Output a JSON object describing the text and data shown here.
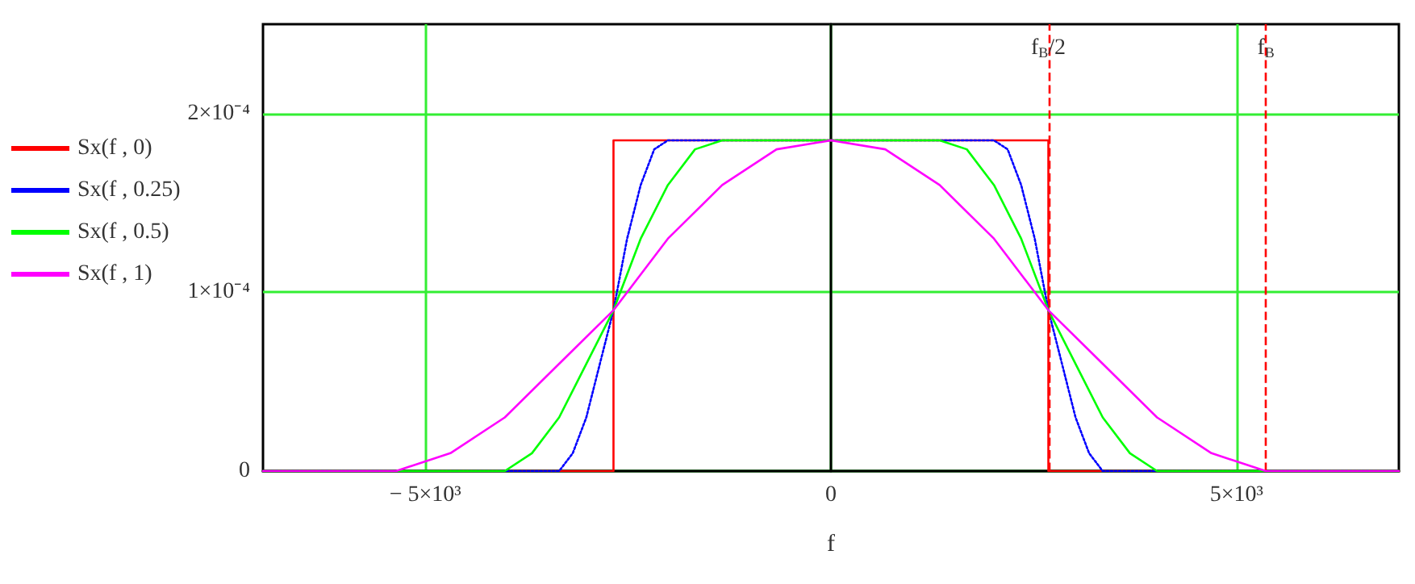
{
  "chart_data": {
    "type": "line",
    "xlabel": "f",
    "legend": "left",
    "grid": true,
    "marker": "none",
    "line_style": "solid",
    "xlim": [
      -7000,
      7000
    ],
    "ylim": [
      0,
      0.00025
    ],
    "xticks": [
      {
        "value": -5000,
        "label": "− 5×10³"
      },
      0,
      {
        "value": 5000,
        "label": "5×10³"
      }
    ],
    "yticks": [
      0,
      {
        "value": 0.0001,
        "label": "1×10⁻⁴"
      },
      {
        "value": 0.0002,
        "label": "2×10⁻⁴"
      }
    ],
    "ref_lines": [
      {
        "axis": "x",
        "value": 2680,
        "label": "f$_{B}$/2",
        "color": "#ff0000",
        "line_style": "dashed"
      },
      {
        "axis": "x",
        "value": 5360,
        "label": "f$_{B}$",
        "color": "#ff0000",
        "line_style": "dashed"
      }
    ],
    "series": [
      {
        "name": "Sx(f , 0)",
        "color": "#ff0000",
        "x": [
          -7000,
          -2680,
          -2680,
          2680,
          2680,
          7000
        ],
        "values": [
          0,
          0,
          0.000185,
          0.000185,
          0,
          0
        ]
      },
      {
        "name": "Sx(f , 0.25)",
        "color": "#0000ff",
        "line_style": "dotted",
        "x": [
          -7000,
          -3350,
          -3182,
          -3015,
          -2848,
          -2680,
          -2512,
          -2345,
          -2178,
          -2010,
          2010,
          2178,
          2345,
          2512,
          2680,
          2848,
          3015,
          3182,
          3350,
          7000
        ],
        "values": [
          0,
          0,
          1e-05,
          3e-05,
          6e-05,
          9e-05,
          0.00013,
          0.00016,
          0.00018,
          0.000185,
          0.000185,
          0.00018,
          0.00016,
          0.00013,
          9e-05,
          6e-05,
          3e-05,
          1e-05,
          0,
          0
        ]
      },
      {
        "name": "Sx(f , 0.5)",
        "color": "#00ff00",
        "x": [
          -7000,
          -4020,
          -3685,
          -3350,
          -3015,
          -2680,
          -2345,
          -2010,
          -1675,
          -1340,
          1340,
          1675,
          2010,
          2345,
          2680,
          3015,
          3350,
          3685,
          4020,
          7000
        ],
        "values": [
          0,
          0,
          1e-05,
          3e-05,
          6e-05,
          9e-05,
          0.00013,
          0.00016,
          0.00018,
          0.000185,
          0.000185,
          0.00018,
          0.00016,
          0.00013,
          9e-05,
          6e-05,
          3e-05,
          1e-05,
          0,
          0
        ]
      },
      {
        "name": "Sx(f , 1)",
        "color": "#ff00ff",
        "x": [
          -7000,
          -5360,
          -4690,
          -4020,
          -3350,
          -2680,
          -2010,
          -1340,
          -670,
          0,
          670,
          1340,
          2010,
          2680,
          3350,
          4020,
          4690,
          5360,
          7000
        ],
        "values": [
          0,
          0,
          1e-05,
          3e-05,
          6e-05,
          9e-05,
          0.00013,
          0.00016,
          0.00018,
          0.000185,
          0.00018,
          0.00016,
          0.00013,
          9e-05,
          6e-05,
          3e-05,
          1e-05,
          0,
          0
        ]
      }
    ]
  }
}
